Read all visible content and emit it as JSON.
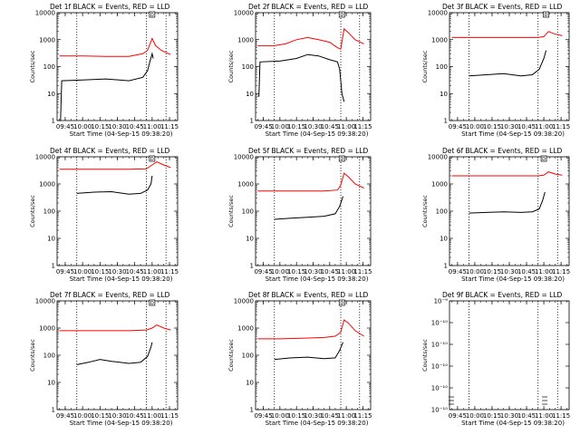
{
  "chart_data": [
    {
      "type": "line",
      "title": "Det 1f BLACK = Events, RED = LLD",
      "xlabel": "Start Time (04-Sep-15 09:38:20)",
      "ylabel": "Counts/sec",
      "ylog": true,
      "ylim": [
        1,
        10000
      ],
      "ytick_labels": [
        "1",
        "10",
        "100",
        "1000",
        "10000"
      ],
      "xlim": [
        "09:38",
        "11:22"
      ],
      "xtick_labels": [
        "09:45",
        "10:00",
        "10:15",
        "10:30",
        "10:45",
        "11:00",
        "11:15"
      ],
      "dotted_lines_at": [
        "09:55",
        "10:55",
        "11:12"
      ],
      "marker": {
        "x": "11:00",
        "label": "D"
      },
      "series": [
        {
          "color": "#ff0000",
          "x": [
            "09:40",
            "10:00",
            "10:20",
            "10:40",
            "10:52",
            "10:56",
            "11:00",
            "11:03",
            "11:08",
            "11:16"
          ],
          "values": [
            250,
            250,
            240,
            240,
            300,
            400,
            1100,
            600,
            400,
            280
          ]
        },
        {
          "color": "#000000",
          "x": [
            "09:40",
            "09:41",
            "09:42",
            "10:00",
            "10:20",
            "10:40",
            "10:52",
            "10:56",
            "10:58",
            "11:00",
            "11:01"
          ],
          "values": [
            1,
            1,
            30,
            32,
            35,
            30,
            40,
            70,
            150,
            300,
            200
          ]
        }
      ]
    },
    {
      "type": "line",
      "title": "Det 2f BLACK = Events, RED = LLD",
      "xlabel": "Start Time (04-Sep-15 09:38:20)",
      "ylabel": "Counts/sec",
      "ylog": true,
      "ylim": [
        1,
        10000
      ],
      "ytick_labels": [
        "1",
        "10",
        "100",
        "1000",
        "10000"
      ],
      "xlim": [
        "09:38",
        "11:22"
      ],
      "xtick_labels": [
        "09:45",
        "10:00",
        "10:15",
        "10:30",
        "10:45",
        "11:00",
        "11:15"
      ],
      "dotted_lines_at": [
        "09:55",
        "10:55",
        "11:12"
      ],
      "marker": {
        "x": "10:56",
        "label": "D"
      },
      "series": [
        {
          "color": "#ff0000",
          "x": [
            "09:40",
            "09:55",
            "10:05",
            "10:15",
            "10:25",
            "10:35",
            "10:45",
            "10:52",
            "10:55",
            "10:58",
            "11:02",
            "11:08",
            "11:16"
          ],
          "values": [
            600,
            600,
            700,
            1000,
            1200,
            1000,
            800,
            500,
            450,
            2500,
            1800,
            1000,
            700
          ]
        },
        {
          "color": "#000000",
          "x": [
            "09:40",
            "09:41",
            "09:42",
            "10:00",
            "10:15",
            "10:25",
            "10:35",
            "10:45",
            "10:52",
            "10:54",
            "10:55",
            "10:56",
            "10:58"
          ],
          "values": [
            8,
            8,
            150,
            160,
            200,
            280,
            250,
            180,
            150,
            80,
            30,
            10,
            5
          ]
        }
      ]
    },
    {
      "type": "line",
      "title": "Det 3f BLACK = Events, RED = LLD",
      "xlabel": "Start Time (04-Sep-15 09:38:20)",
      "ylabel": "Counts/sec",
      "ylog": true,
      "ylim": [
        1,
        10000
      ],
      "ytick_labels": [
        "1",
        "10",
        "100",
        "1000",
        "10000"
      ],
      "xlim": [
        "09:38",
        "11:22"
      ],
      "xtick_labels": [
        "09:45",
        "10:00",
        "10:15",
        "10:30",
        "10:45",
        "11:00",
        "11:15"
      ],
      "dotted_lines_at": [
        "09:55",
        "10:55",
        "11:12"
      ],
      "marker": {
        "x": "11:02",
        "label": "D"
      },
      "series": [
        {
          "color": "#ff0000",
          "x": [
            "09:40",
            "10:00",
            "10:20",
            "10:40",
            "10:55",
            "11:00",
            "11:04",
            "11:10",
            "11:16"
          ],
          "values": [
            1200,
            1200,
            1200,
            1200,
            1200,
            1300,
            2000,
            1600,
            1400
          ]
        },
        {
          "color": "#000000",
          "x": [
            "09:55",
            "10:10",
            "10:25",
            "10:40",
            "10:50",
            "10:56",
            "11:00",
            "11:02"
          ],
          "values": [
            45,
            50,
            55,
            45,
            50,
            80,
            200,
            400
          ]
        }
      ]
    },
    {
      "type": "line",
      "title": "Det 4f BLACK = Events, RED = LLD",
      "xlabel": "Start Time (04-Sep-15 09:38:20)",
      "ylabel": "Counts/sec",
      "ylog": true,
      "ylim": [
        1,
        10000
      ],
      "ytick_labels": [
        "1",
        "10",
        "100",
        "1000",
        "10000"
      ],
      "xlim": [
        "09:38",
        "11:22"
      ],
      "xtick_labels": [
        "09:45",
        "10:00",
        "10:15",
        "10:30",
        "10:45",
        "11:00",
        "11:15"
      ],
      "dotted_lines_at": [
        "09:55",
        "10:55",
        "11:12"
      ],
      "marker": {
        "x": "11:00",
        "label": "D"
      },
      "series": [
        {
          "color": "#ff0000",
          "x": [
            "09:40",
            "10:00",
            "10:20",
            "10:40",
            "10:55",
            "11:00",
            "11:04",
            "11:10",
            "11:16"
          ],
          "values": [
            3500,
            3500,
            3500,
            3500,
            3600,
            5000,
            6500,
            5000,
            4000
          ]
        },
        {
          "color": "#000000",
          "x": [
            "09:55",
            "10:10",
            "10:25",
            "10:40",
            "10:50",
            "10:56",
            "10:59",
            "11:00"
          ],
          "values": [
            450,
            500,
            520,
            420,
            450,
            600,
            1000,
            2000
          ]
        }
      ]
    },
    {
      "type": "line",
      "title": "Det 5f BLACK = Events, RED = LLD",
      "xlabel": "Start Time (04-Sep-15 09:38:20)",
      "ylabel": "Counts/sec",
      "ylog": true,
      "ylim": [
        1,
        10000
      ],
      "ytick_labels": [
        "1",
        "10",
        "100",
        "1000",
        "10000"
      ],
      "xlim": [
        "09:38",
        "11:22"
      ],
      "xtick_labels": [
        "09:45",
        "10:00",
        "10:15",
        "10:30",
        "10:45",
        "11:00",
        "11:15"
      ],
      "dotted_lines_at": [
        "09:55",
        "10:55",
        "11:12"
      ],
      "marker": {
        "x": "10:56",
        "label": "D"
      },
      "series": [
        {
          "color": "#ff0000",
          "x": [
            "09:40",
            "10:00",
            "10:20",
            "10:40",
            "10:52",
            "10:55",
            "10:58",
            "11:02",
            "11:08",
            "11:16"
          ],
          "values": [
            550,
            550,
            550,
            550,
            600,
            900,
            2500,
            1800,
            1000,
            700
          ]
        },
        {
          "color": "#000000",
          "x": [
            "09:55",
            "10:10",
            "10:25",
            "10:40",
            "10:50",
            "10:54",
            "10:57"
          ],
          "values": [
            50,
            55,
            60,
            65,
            80,
            150,
            350
          ]
        }
      ]
    },
    {
      "type": "line",
      "title": "Det 6f BLACK = Events, RED = LLD",
      "xlabel": "Start Time (04-Sep-15 09:38:20)",
      "ylabel": "Counts/sec",
      "ylog": true,
      "ylim": [
        1,
        10000
      ],
      "ytick_labels": [
        "1",
        "10",
        "100",
        "1000",
        "10000"
      ],
      "xlim": [
        "09:38",
        "11:22"
      ],
      "xtick_labels": [
        "09:45",
        "10:00",
        "10:15",
        "10:30",
        "10:45",
        "11:00",
        "11:15"
      ],
      "dotted_lines_at": [
        "09:55",
        "10:55",
        "11:12"
      ],
      "marker": {
        "x": "11:00",
        "label": "D"
      },
      "series": [
        {
          "color": "#ff0000",
          "x": [
            "09:40",
            "10:00",
            "10:20",
            "10:40",
            "10:55",
            "11:00",
            "11:04",
            "11:10",
            "11:16"
          ],
          "values": [
            2000,
            2000,
            2000,
            2000,
            2000,
            2100,
            2800,
            2300,
            2100
          ]
        },
        {
          "color": "#000000",
          "x": [
            "09:55",
            "10:10",
            "10:25",
            "10:40",
            "10:50",
            "10:56",
            "10:59",
            "11:01"
          ],
          "values": [
            85,
            90,
            95,
            90,
            95,
            120,
            250,
            500
          ]
        }
      ]
    },
    {
      "type": "line",
      "title": "Det 7f BLACK = Events, RED = LLD",
      "xlabel": "Start Time (04-Sep-15 09:38:20)",
      "ylabel": "Counts/sec",
      "ylog": true,
      "ylim": [
        1,
        10000
      ],
      "ytick_labels": [
        "1",
        "10",
        "100",
        "1000",
        "10000"
      ],
      "xlim": [
        "09:38",
        "11:22"
      ],
      "xtick_labels": [
        "09:45",
        "10:00",
        "10:15",
        "10:30",
        "10:45",
        "11:00",
        "11:15"
      ],
      "dotted_lines_at": [
        "09:55",
        "10:55",
        "11:12"
      ],
      "marker": {
        "x": "11:00",
        "label": "D"
      },
      "series": [
        {
          "color": "#ff0000",
          "x": [
            "09:40",
            "10:00",
            "10:20",
            "10:40",
            "10:55",
            "11:00",
            "11:04",
            "11:10",
            "11:16"
          ],
          "values": [
            800,
            800,
            800,
            800,
            850,
            1000,
            1300,
            1000,
            850
          ]
        },
        {
          "color": "#000000",
          "x": [
            "09:55",
            "10:05",
            "10:15",
            "10:25",
            "10:40",
            "10:50",
            "10:56",
            "10:59",
            "11:00"
          ],
          "values": [
            45,
            55,
            70,
            60,
            50,
            55,
            90,
            200,
            300
          ]
        }
      ]
    },
    {
      "type": "line",
      "title": "Det 8f BLACK = Events, RED = LLD",
      "xlabel": "Start Time (04-Sep-15 09:38:20)",
      "ylabel": "Counts/sec",
      "ylog": true,
      "ylim": [
        1,
        10000
      ],
      "ytick_labels": [
        "1",
        "10",
        "100",
        "1000",
        "10000"
      ],
      "xlim": [
        "09:38",
        "11:22"
      ],
      "xtick_labels": [
        "09:45",
        "10:00",
        "10:15",
        "10:30",
        "10:45",
        "11:00",
        "11:15"
      ],
      "dotted_lines_at": [
        "09:55",
        "10:55",
        "11:12"
      ],
      "marker": {
        "x": "10:56",
        "label": "D"
      },
      "series": [
        {
          "color": "#ff0000",
          "x": [
            "09:40",
            "10:00",
            "10:20",
            "10:40",
            "10:50",
            "10:55",
            "10:58",
            "11:02",
            "11:08",
            "11:16"
          ],
          "values": [
            400,
            400,
            420,
            450,
            500,
            700,
            2000,
            1500,
            800,
            500
          ]
        },
        {
          "color": "#000000",
          "x": [
            "09:55",
            "10:10",
            "10:25",
            "10:40",
            "10:50",
            "10:54",
            "10:57"
          ],
          "values": [
            70,
            80,
            85,
            75,
            80,
            150,
            300
          ]
        }
      ]
    },
    {
      "type": "line",
      "title": "Det 9f BLACK = Events, RED = LLD",
      "xlabel": "Start Time (04-Sep-15 09:38:20)",
      "ylabel": "Counts/sec",
      "ylog": true,
      "ylim": [
        1e-10,
        1e-09
      ],
      "ytick_labels": [
        "10⁻¹⁰",
        "10⁻¹⁰",
        "10⁻¹⁰",
        "10⁻¹⁰",
        "10⁻¹⁰",
        "10⁻⁹"
      ],
      "xlim": [
        "09:38",
        "11:22"
      ],
      "xtick_labels": [
        "09:45",
        "10:00",
        "10:15",
        "10:30",
        "10:45",
        "11:00",
        "11:15"
      ],
      "dotted_lines_at": [
        "09:55",
        "10:55",
        "11:12"
      ],
      "series": []
    }
  ]
}
